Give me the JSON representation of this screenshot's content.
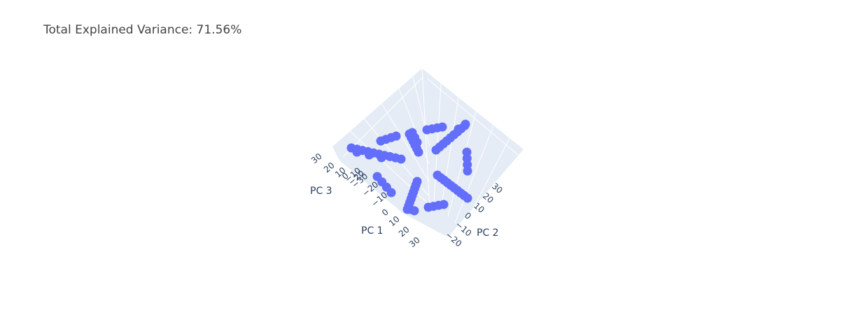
{
  "chart_data": {
    "type": "scatter3d",
    "title": "Total Explained Variance: 71.56%",
    "axes": {
      "x": {
        "label": "PC 1",
        "ticks": [
          "30",
          "20",
          "10",
          "0",
          "−10",
          "−20"
        ],
        "range": [
          -25,
          35
        ]
      },
      "y": {
        "label": "PC 2",
        "ticks": [
          "30",
          "20",
          "10",
          "0",
          "−10",
          "−20"
        ],
        "range": [
          -25,
          35
        ]
      },
      "z": {
        "label": "PC 3",
        "ticks": [
          "30",
          "20",
          "10",
          "0",
          "−10",
          "−20",
          "−30"
        ],
        "range": [
          -35,
          35
        ]
      }
    },
    "marker_color": "#636efa",
    "background": "#e5ecf6",
    "grid": true
  }
}
